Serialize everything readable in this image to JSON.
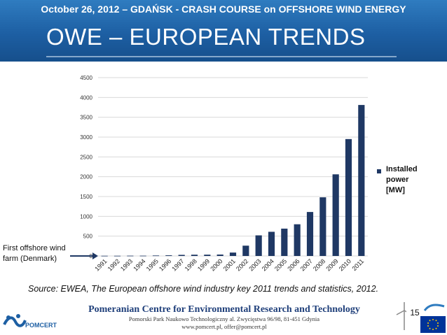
{
  "header": {
    "event_line": "October 26, 2012 – GDAŃSK - CRASH COURSE on OFFSHORE WIND ENERGY",
    "title": "OWE – EUROPEAN TRENDS"
  },
  "chart_data": {
    "type": "bar",
    "categories": [
      "1991",
      "1992",
      "1993",
      "1994",
      "1995",
      "1996",
      "1997",
      "1998",
      "1999",
      "2000",
      "2001",
      "2002",
      "2003",
      "2004",
      "2005",
      "2006",
      "2007",
      "2008",
      "2009",
      "2010",
      "2011"
    ],
    "series": [
      {
        "name": "Installed power [MW]",
        "values": [
          5,
          5,
          7,
          7,
          12,
          17,
          28,
          32,
          33,
          36,
          86,
          260,
          520,
          610,
          690,
          800,
          1110,
          1480,
          2060,
          2950,
          3810
        ]
      }
    ],
    "ylim": [
      0,
      4500
    ],
    "yticks": [
      "0",
      "500",
      "1000",
      "1500",
      "2000",
      "2500",
      "3000",
      "3500",
      "4000",
      "4500"
    ],
    "grid": true,
    "legend_position": "right",
    "bar_color": "#1f3864"
  },
  "legend": {
    "label": "Installed\npower\n[MW]"
  },
  "annotation": {
    "text": "First offshore wind\nfarm (Denmark)"
  },
  "source": {
    "text": "Source: EWEA, The European offshore wind industry key 2011 trends and statistics, 2012."
  },
  "footer": {
    "org_name": "Pomeranian Centre for Environmental Research and Technology",
    "address": "Pomorski Park Naukowo Technologiczny  al. Zwycięstwa 96/98, 81-451 Gdynia",
    "web": "www.pomcert.pl, offer@pomcert.pl",
    "logo_text": "POMCERT",
    "page_number": "15"
  },
  "colors": {
    "header_blue": "#1d5fa3",
    "bar": "#1f3864",
    "arrow": "#1f3864"
  }
}
